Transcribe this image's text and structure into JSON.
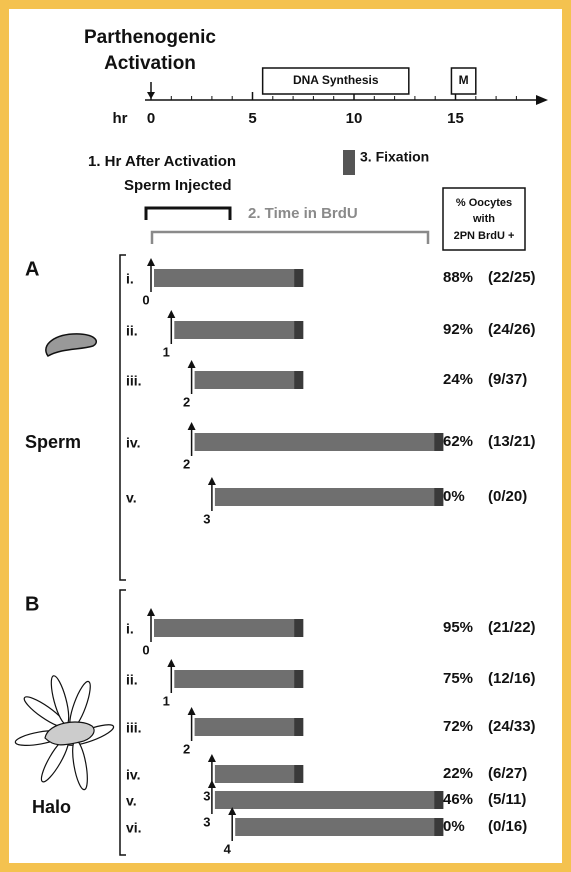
{
  "title": [
    "Parthenogenic",
    "Activation"
  ],
  "timeline": {
    "axis_label": "hr",
    "ticks": [
      0,
      5,
      10,
      15
    ],
    "phases": [
      {
        "label": "DNA Synthesis",
        "start": 5.5,
        "end": 12.7
      },
      {
        "label": "M",
        "start": 14.8,
        "end": 16
      }
    ]
  },
  "legend": {
    "step1": [
      "1. Hr After Activation",
      "Sperm Injected"
    ],
    "step2": "2. Time in BrdU",
    "step3": "3. Fixation",
    "result_header": [
      "% Oocytes",
      "with",
      "2PN BrdU +"
    ]
  },
  "panels": [
    {
      "letter": "A",
      "label": "Sperm",
      "rows": [
        {
          "label": "i.",
          "hour": 0,
          "end": 7.5,
          "percent": "88%",
          "count": "(22/25)"
        },
        {
          "label": "ii.",
          "hour": 1,
          "end": 7.5,
          "percent": "92%",
          "count": "(24/26)"
        },
        {
          "label": "iii.",
          "hour": 2,
          "end": 7.5,
          "percent": "24%",
          "count": "(9/37)"
        },
        {
          "label": "iv.",
          "hour": 2,
          "end": 14.4,
          "percent": "62%",
          "count": "(13/21)"
        },
        {
          "label": "v.",
          "hour": 3,
          "end": 14.4,
          "percent": "0%",
          "count": "(0/20)"
        }
      ]
    },
    {
      "letter": "B",
      "label": "Halo",
      "rows": [
        {
          "label": "i.",
          "hour": 0,
          "end": 7.5,
          "percent": "95%",
          "count": "(21/22)"
        },
        {
          "label": "ii.",
          "hour": 1,
          "end": 7.5,
          "percent": "75%",
          "count": "(12/16)"
        },
        {
          "label": "iii.",
          "hour": 2,
          "end": 7.5,
          "percent": "72%",
          "count": "(24/33)"
        },
        {
          "label": "iv.",
          "hour": 3,
          "end": 7.5,
          "percent": "22%",
          "count": "(6/27)"
        },
        {
          "label": "v.",
          "hour": 3,
          "end": 14.4,
          "percent": "46%",
          "count": "(5/11)"
        },
        {
          "label": "vi.",
          "hour": 4,
          "end": 14.4,
          "percent": "0%",
          "count": "(0/16)"
        }
      ]
    }
  ]
}
